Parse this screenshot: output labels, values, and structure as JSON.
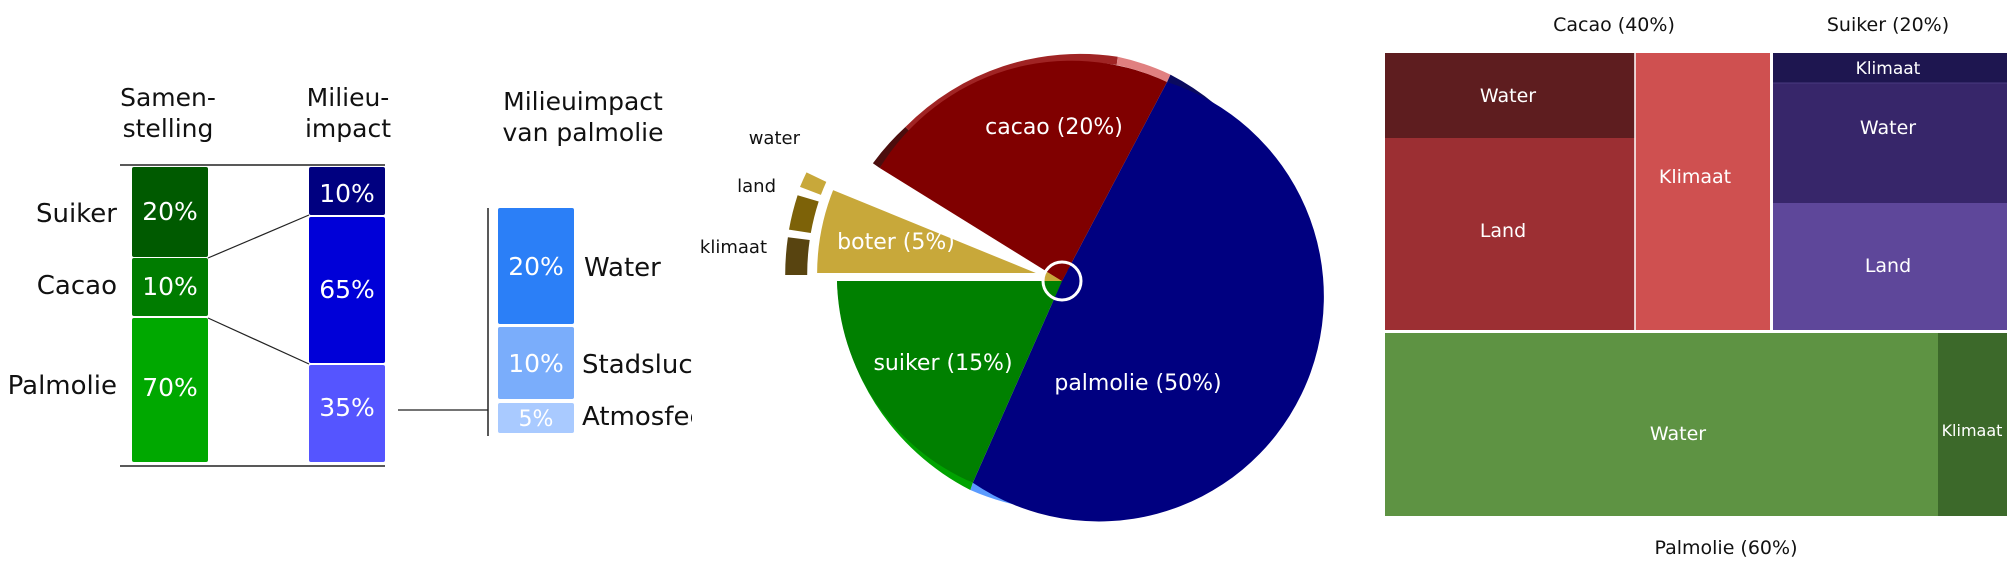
{
  "panel1": {
    "header_comp": [
      "Samen-",
      "stelling"
    ],
    "header_impact": [
      "Milieu-",
      "impact"
    ],
    "header_palm": [
      "Milieuimpact",
      "van palmolie"
    ],
    "rows": [
      {
        "label": "Suiker",
        "value": "20%",
        "share": 20,
        "color": "#005a00"
      },
      {
        "label": "Cacao",
        "value": "10%",
        "share": 10,
        "color": "#007c00"
      },
      {
        "label": "Palmolie",
        "value": "70%",
        "share": 70,
        "color": "#00a800"
      }
    ],
    "impact": [
      {
        "value": "10%",
        "share": 10,
        "color": "#000080"
      },
      {
        "value": "65%",
        "share": 65,
        "color": "#0000d8"
      },
      {
        "value": "35%",
        "share": 35,
        "color": "#5555ff"
      }
    ],
    "palm": [
      {
        "value": "20%",
        "label": "Water",
        "share": 20,
        "color": "#2b7ff7"
      },
      {
        "value": "10%",
        "label": "Stadsluc",
        "share": 10,
        "color": "#7aadfb"
      },
      {
        "value": "5%",
        "label": "Atmosfee",
        "share": 5,
        "color": "#a9caff"
      }
    ]
  },
  "panel2": {
    "slices": [
      {
        "label": "palmolie (50%)",
        "share": 50,
        "color": "#000080"
      },
      {
        "label": "suiker (15%)",
        "share": 15,
        "color": "#008000"
      },
      {
        "label": "boter (5%)",
        "share": 5,
        "color": "#c8a83a"
      },
      {
        "label": "cacao (20%)",
        "share": 20,
        "color": "#800000"
      }
    ],
    "boter_rings": [
      "water",
      "land",
      "klimaat"
    ]
  },
  "panel3": {
    "title_cacao": "Cacao (40%)",
    "title_suiker": "Suiker (20%)",
    "title_palm": "Palmolie (60%)",
    "cacao": {
      "water": "Water",
      "land": "Land",
      "klimaat": "Klimaat"
    },
    "suiker": {
      "klimaat": "Klimaat",
      "water": "Water",
      "land": "Land"
    },
    "palm": {
      "water": "Water",
      "klimaat": "Klimaat"
    },
    "colors": {
      "cacao_water": "#5e1d1f",
      "cacao_land": "#9c2f33",
      "cacao_klimaat": "#cf5050",
      "suiker_klimaat": "#1e1650",
      "suiker_water": "#37266a",
      "suiker_land": "#5e479a",
      "palm_water": "#5e9343",
      "palm_klimaat": "#3c692a"
    }
  }
}
